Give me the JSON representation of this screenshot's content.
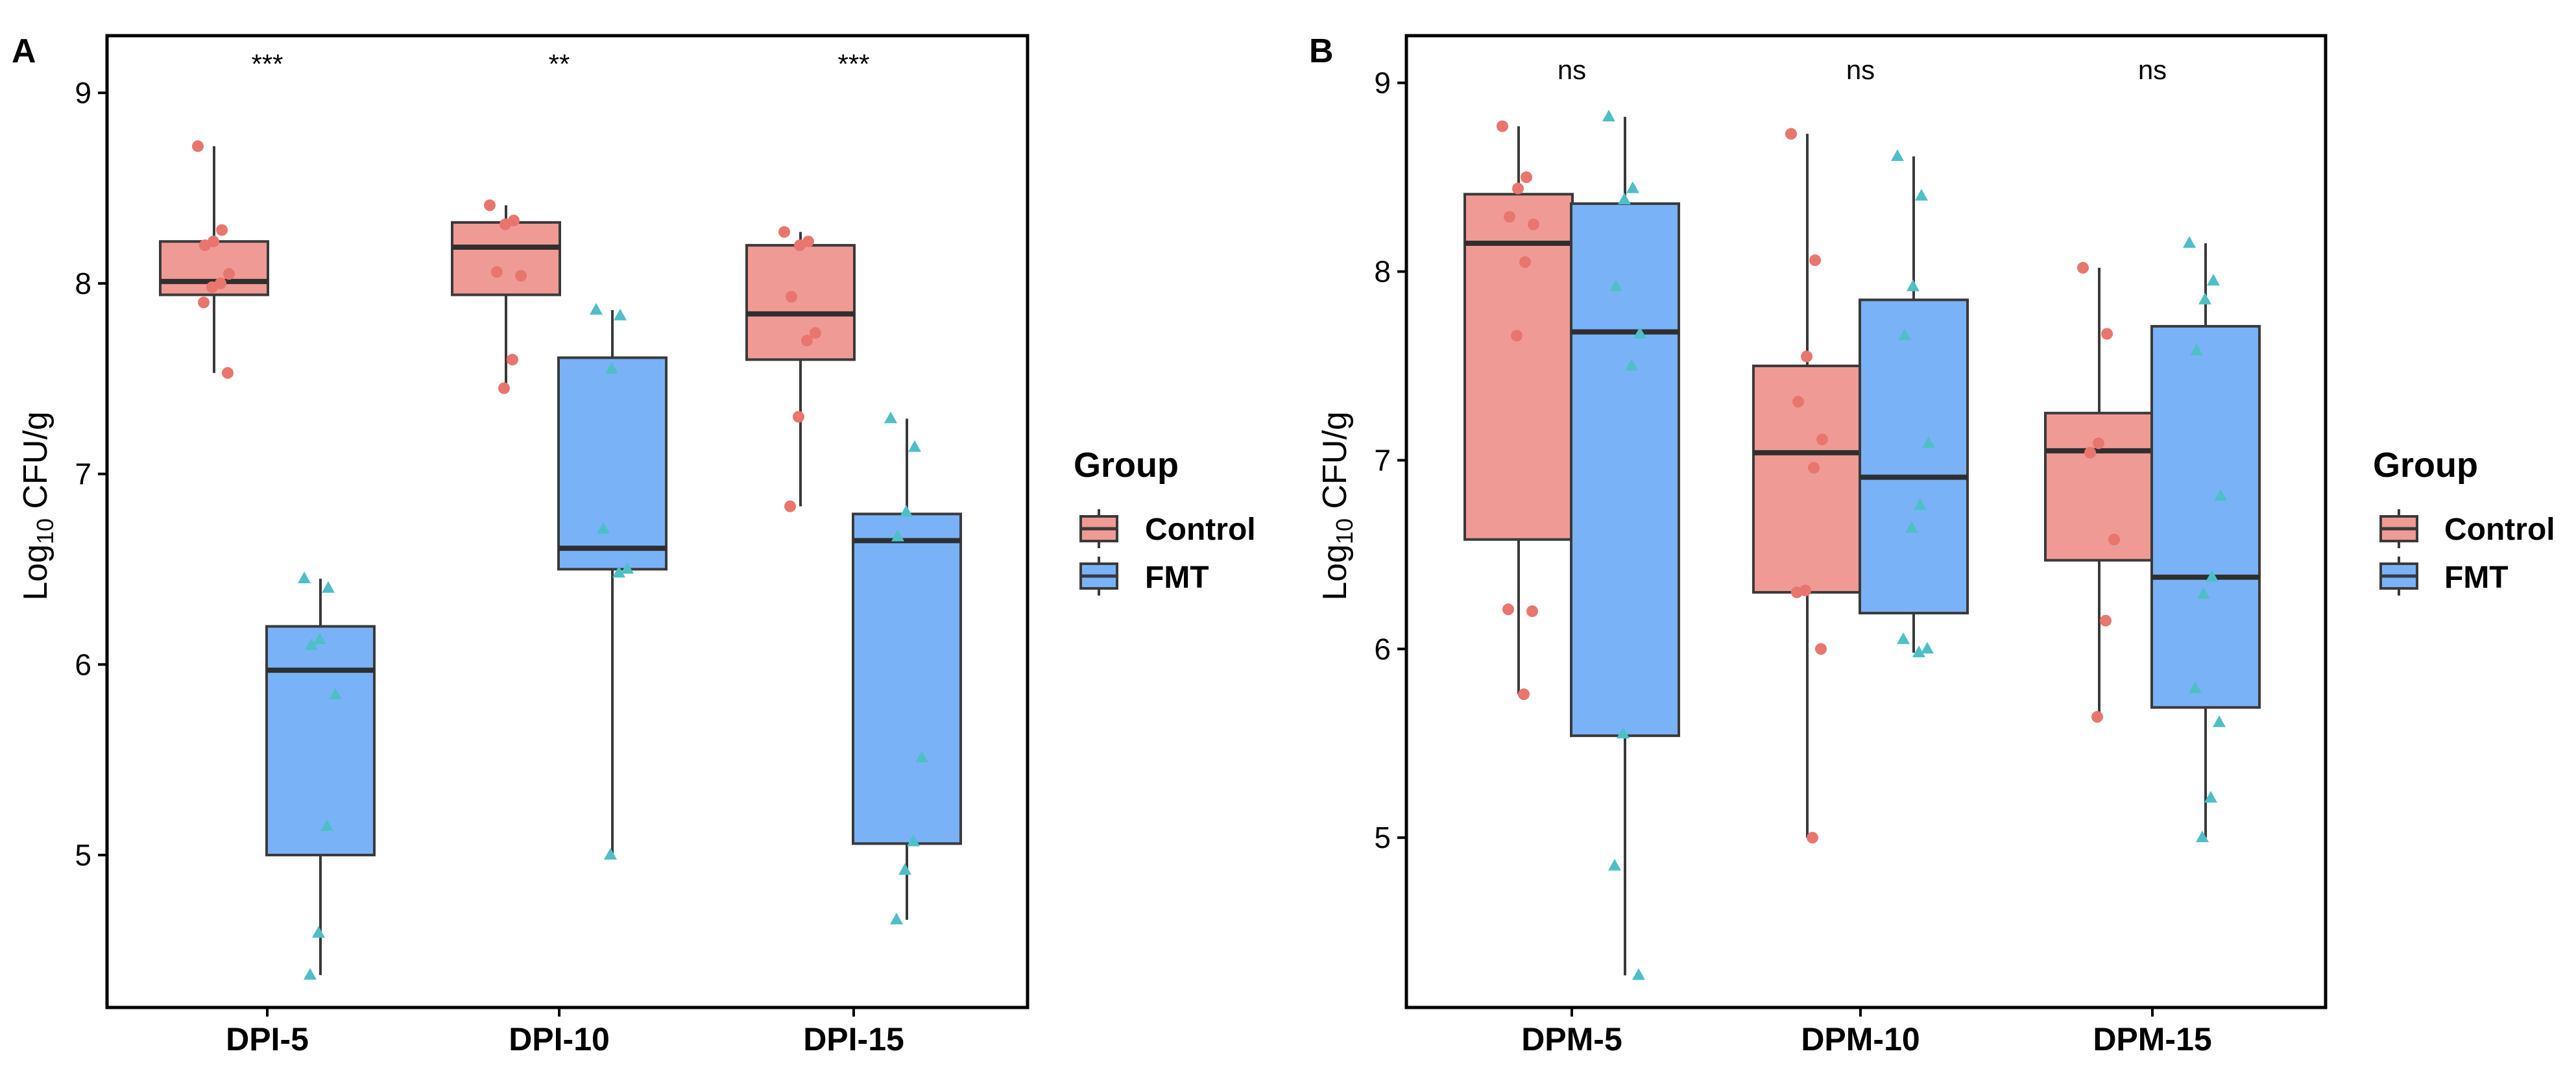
{
  "colors": {
    "control_fill": "#F09A96",
    "control_point": "#E8766E",
    "fmt_fill": "#7AB2F8",
    "fmt_point": "#4FBFC7",
    "box_stroke": "#3a3a3a",
    "axis": "#000000"
  },
  "legend": {
    "title": "Group",
    "items": [
      {
        "label": "Control",
        "color_key": "control"
      },
      {
        "label": "FMT",
        "color_key": "fmt"
      }
    ]
  },
  "chart_data": [
    {
      "panel_label": "A",
      "type": "box",
      "ylabel_prefix": "Log",
      "ylabel_sub": "10",
      "ylabel_suffix": " CFU/g",
      "ylim": [
        4.2,
        9.3
      ],
      "yticks": [
        "5",
        "6",
        "7",
        "8",
        "9"
      ],
      "categories": [
        "DPI-5",
        "DPI-10",
        "DPI-15"
      ],
      "significance": [
        "***",
        "**",
        "***"
      ],
      "series": [
        {
          "name": "Control",
          "boxes": [
            {
              "q1": 7.94,
              "median": 8.01,
              "q3": 8.22,
              "min": 7.53,
              "max": 8.72
            },
            {
              "q1": 7.94,
              "median": 8.19,
              "q3": 8.32,
              "min": 7.45,
              "max": 8.41
            },
            {
              "q1": 7.6,
              "median": 7.84,
              "q3": 8.2,
              "min": 6.83,
              "max": 8.27
            }
          ],
          "points": [
            [
              8.72,
              8.28,
              8.22,
              8.2,
              8.05,
              8.0,
              7.98,
              7.9,
              7.53
            ],
            [
              8.41,
              8.33,
              8.31,
              8.06,
              8.04,
              7.6,
              7.45
            ],
            [
              8.27,
              8.22,
              8.2,
              7.93,
              7.74,
              7.7,
              7.3,
              6.83
            ]
          ]
        },
        {
          "name": "FMT",
          "boxes": [
            {
              "q1": 5.0,
              "median": 5.97,
              "q3": 6.2,
              "min": 4.37,
              "max": 6.45
            },
            {
              "q1": 6.5,
              "median": 6.61,
              "q3": 7.61,
              "min": 5.0,
              "max": 7.86
            },
            {
              "q1": 5.06,
              "median": 6.65,
              "q3": 6.79,
              "min": 4.66,
              "max": 7.29
            }
          ],
          "points": [
            [
              6.45,
              6.4,
              6.13,
              6.1,
              5.84,
              5.15,
              4.59,
              4.37
            ],
            [
              7.86,
              7.83,
              7.55,
              6.71,
              6.5,
              6.48,
              5.0
            ],
            [
              7.29,
              7.14,
              6.8,
              6.67,
              5.51,
              5.07,
              4.92,
              4.66
            ]
          ]
        }
      ]
    },
    {
      "panel_label": "B",
      "type": "box",
      "ylabel_prefix": "Log",
      "ylabel_sub": "10",
      "ylabel_suffix": " CFU/g",
      "ylim": [
        4.1,
        9.25
      ],
      "yticks": [
        "5",
        "6",
        "7",
        "8",
        "9"
      ],
      "categories": [
        "DPM-5",
        "DPM-10",
        "DPM-15"
      ],
      "significance": [
        "ns",
        "ns",
        "ns"
      ],
      "series": [
        {
          "name": "Control",
          "boxes": [
            {
              "q1": 6.58,
              "median": 8.15,
              "q3": 8.41,
              "min": 5.76,
              "max": 8.77
            },
            {
              "q1": 6.3,
              "median": 7.04,
              "q3": 7.5,
              "min": 5.0,
              "max": 8.73
            },
            {
              "q1": 6.47,
              "median": 7.05,
              "q3": 7.25,
              "min": 5.64,
              "max": 8.02
            }
          ],
          "points": [
            [
              8.77,
              8.5,
              8.44,
              8.29,
              8.25,
              8.05,
              7.66,
              6.21,
              6.2,
              5.76
            ],
            [
              8.73,
              8.06,
              7.55,
              7.31,
              7.11,
              6.96,
              6.31,
              6.3,
              6.0,
              5.0
            ],
            [
              8.02,
              7.67,
              7.09,
              7.04,
              6.58,
              6.15,
              5.64
            ]
          ]
        },
        {
          "name": "FMT",
          "boxes": [
            {
              "q1": 5.54,
              "median": 7.68,
              "q3": 8.36,
              "min": 4.27,
              "max": 8.82
            },
            {
              "q1": 6.19,
              "median": 6.91,
              "q3": 7.85,
              "min": 5.98,
              "max": 8.61
            },
            {
              "q1": 5.69,
              "median": 6.38,
              "q3": 7.71,
              "min": 5.0,
              "max": 8.15
            }
          ],
          "points": [
            [
              8.82,
              8.44,
              8.38,
              7.92,
              7.67,
              7.5,
              5.55,
              4.85,
              4.27
            ],
            [
              8.61,
              8.4,
              7.92,
              7.66,
              7.09,
              6.76,
              6.64,
              6.05,
              6.0,
              5.98
            ],
            [
              8.15,
              7.95,
              7.85,
              7.58,
              6.81,
              6.38,
              6.29,
              5.79,
              5.61,
              5.21,
              5.0
            ]
          ]
        }
      ]
    }
  ]
}
